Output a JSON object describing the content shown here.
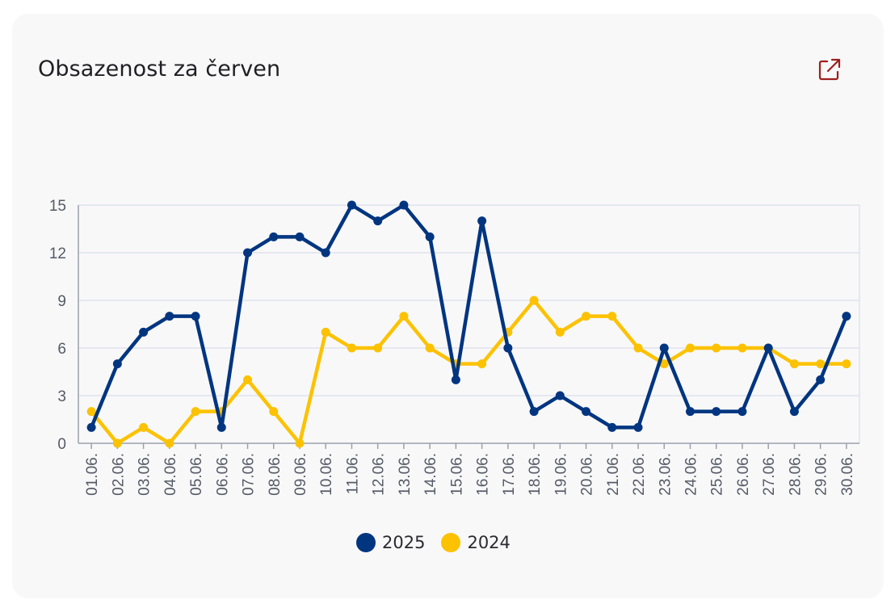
{
  "card": {
    "title": "Obsazenost za červen",
    "open_icon": "external-link-icon",
    "accent_color": "#a11d1d"
  },
  "legend": [
    {
      "label": "2025",
      "color": "#003580"
    },
    {
      "label": "2024",
      "color": "#fcc200"
    }
  ],
  "chart_data": {
    "type": "line",
    "title": "Obsazenost za červen",
    "xlabel": "",
    "ylabel": "",
    "categories": [
      "01.06.",
      "02.06.",
      "03.06.",
      "04.06.",
      "05.06.",
      "06.06.",
      "07.06.",
      "08.06.",
      "09.06.",
      "10.06.",
      "11.06.",
      "12.06.",
      "13.06.",
      "14.06.",
      "15.06.",
      "16.06.",
      "17.06.",
      "18.06.",
      "19.06.",
      "20.06.",
      "21.06.",
      "22.06.",
      "23.06.",
      "24.06.",
      "25.06.",
      "26.06.",
      "27.06.",
      "28.06.",
      "29.06.",
      "30.06."
    ],
    "yticks": [
      0,
      3,
      6,
      9,
      12,
      15
    ],
    "ylim": [
      0,
      15
    ],
    "grid": true,
    "legend_position": "bottom",
    "series": [
      {
        "name": "2025",
        "color": "#003580",
        "values": [
          1,
          5,
          7,
          8,
          8,
          1,
          12,
          13,
          13,
          12,
          15,
          14,
          15,
          13,
          4,
          14,
          6,
          2,
          3,
          2,
          1,
          1,
          6,
          2,
          2,
          2,
          6,
          2,
          4,
          8
        ]
      },
      {
        "name": "2024",
        "color": "#fcc200",
        "values": [
          2,
          0,
          1,
          0,
          2,
          2,
          4,
          2,
          0,
          7,
          6,
          6,
          8,
          6,
          5,
          5,
          7,
          9,
          7,
          8,
          8,
          6,
          5,
          6,
          6,
          6,
          6,
          5,
          5,
          5
        ]
      }
    ]
  }
}
